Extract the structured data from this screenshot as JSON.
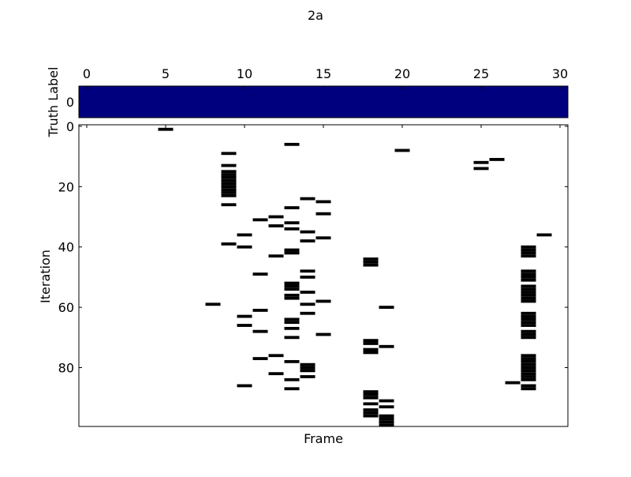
{
  "chart_data": [
    {
      "type": "heatmap",
      "title": "2a",
      "ylabel": "Truth Label",
      "xlim": [
        0,
        31
      ],
      "x_ticks": [
        0,
        5,
        10,
        15,
        20,
        25,
        30
      ],
      "y_ticks": [
        0
      ],
      "fill_color": "#00007f",
      "values": [
        0,
        0,
        0,
        0,
        0,
        0,
        0,
        0,
        0,
        0,
        0,
        0,
        0,
        0,
        0,
        0,
        0,
        0,
        0,
        0,
        0,
        0,
        0,
        0,
        0,
        0,
        0,
        0,
        0,
        0,
        0
      ]
    },
    {
      "type": "heatmap",
      "xlabel": "Frame",
      "ylabel": "Iteration",
      "xlim": [
        0,
        31
      ],
      "ylim": [
        0,
        100
      ],
      "y_ticks": [
        0,
        20,
        40,
        60,
        80
      ],
      "mark_color": "#000000",
      "cells": [
        {
          "frame": 5,
          "iters": [
            1
          ]
        },
        {
          "frame": 8,
          "iters": [
            59
          ]
        },
        {
          "frame": 9,
          "iters": [
            9,
            13,
            15,
            16,
            17,
            18,
            19,
            20,
            21,
            22,
            23,
            26,
            39
          ]
        },
        {
          "frame": 10,
          "iters": [
            36,
            40,
            63,
            66,
            86
          ]
        },
        {
          "frame": 11,
          "iters": [
            31,
            49,
            61,
            68,
            77
          ]
        },
        {
          "frame": 12,
          "iters": [
            30,
            33,
            43,
            76,
            82
          ]
        },
        {
          "frame": 13,
          "iters": [
            6,
            27,
            32,
            34,
            41,
            42,
            52,
            53,
            54,
            56,
            57,
            64,
            65,
            67,
            70,
            78,
            84,
            87
          ]
        },
        {
          "frame": 14,
          "iters": [
            24,
            35,
            38,
            48,
            50,
            55,
            59,
            62,
            79,
            80,
            81,
            83
          ]
        },
        {
          "frame": 15,
          "iters": [
            25,
            29,
            37,
            58,
            69
          ]
        },
        {
          "frame": 18,
          "iters": [
            44,
            45,
            46,
            71,
            72,
            74,
            75,
            88,
            89,
            90,
            92,
            94,
            95,
            96
          ]
        },
        {
          "frame": 19,
          "iters": [
            60,
            73,
            91,
            93,
            96,
            97,
            98,
            99
          ]
        },
        {
          "frame": 20,
          "iters": [
            8
          ]
        },
        {
          "frame": 25,
          "iters": [
            12,
            14
          ]
        },
        {
          "frame": 26,
          "iters": [
            11
          ]
        },
        {
          "frame": 27,
          "iters": [
            85
          ]
        },
        {
          "frame": 28,
          "iters": [
            40,
            41,
            42,
            43,
            48,
            49,
            50,
            51,
            53,
            54,
            55,
            56,
            57,
            58,
            62,
            63,
            64,
            65,
            66,
            68,
            69,
            70,
            76,
            77,
            78,
            79,
            80,
            81,
            82,
            83,
            84,
            86,
            87
          ]
        },
        {
          "frame": 29,
          "iters": [
            36
          ]
        }
      ]
    }
  ]
}
